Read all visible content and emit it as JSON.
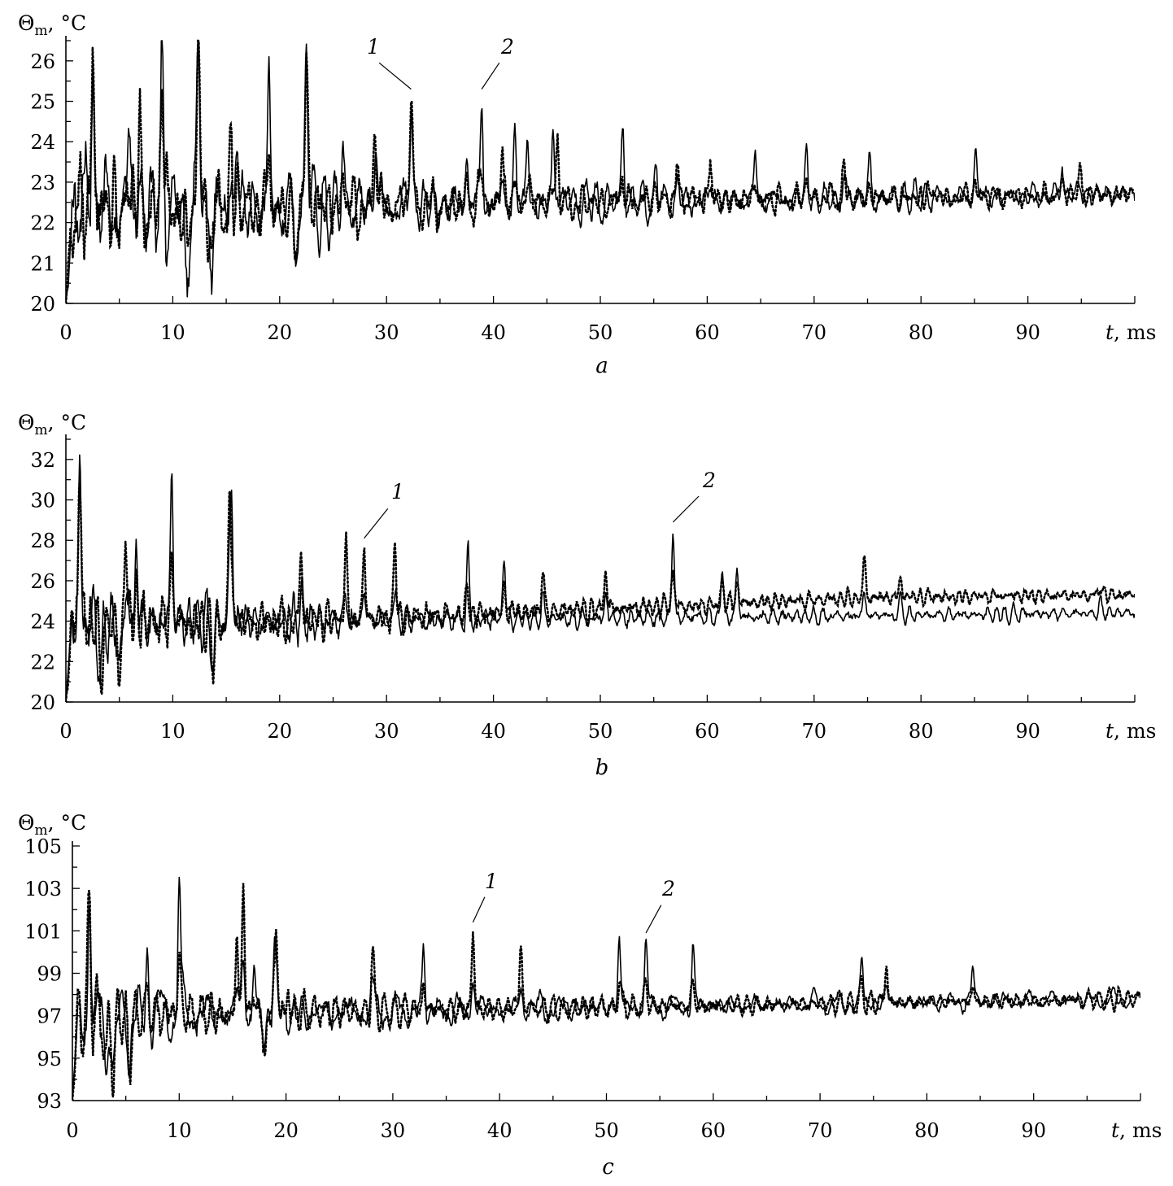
{
  "figure": {
    "panels": [
      "a",
      "b",
      "c"
    ]
  },
  "chart_data": [
    {
      "type": "line",
      "panel_label": "a",
      "ylabel": "Θm, °C",
      "xlabel": "t, ms",
      "xlim": [
        0,
        100
      ],
      "ylim": [
        20,
        26.5
      ],
      "x_ticks": [
        0,
        10,
        20,
        30,
        40,
        50,
        60,
        70,
        80,
        90
      ],
      "y_ticks": [
        20,
        21,
        22,
        23,
        24,
        25,
        26
      ],
      "series": [
        {
          "name": "1",
          "style": "dotted",
          "color": "#000000"
        },
        {
          "name": "2",
          "style": "solid",
          "color": "#000000"
        }
      ],
      "annotations": [
        {
          "label": "1",
          "at_x": 32.3,
          "at_y": 25.3
        },
        {
          "label": "2",
          "at_x": 38.9,
          "at_y": 25.3
        }
      ],
      "signal": {
        "baseline_start": 22.3,
        "baseline_end": 22.7,
        "envelope_start": 3.4,
        "envelope_end": 0.6,
        "peaks_solid": [
          [
            2.5,
            25.8
          ],
          [
            5.9,
            24.6
          ],
          [
            9.0,
            25.2
          ],
          [
            12.4,
            26.1
          ],
          [
            16.0,
            24.5
          ],
          [
            19.0,
            25.7
          ],
          [
            22.5,
            26.0
          ],
          [
            25.9,
            24.0
          ],
          [
            29.0,
            24.1
          ],
          [
            32.3,
            24.2
          ],
          [
            37.5,
            23.9
          ],
          [
            38.9,
            25.3
          ],
          [
            42.0,
            24.2
          ],
          [
            43.2,
            24.4
          ],
          [
            45.6,
            24.2
          ],
          [
            52.1,
            24.5
          ],
          [
            55.2,
            23.6
          ],
          [
            64.5,
            23.8
          ],
          [
            69.3,
            24.0
          ],
          [
            75.2,
            23.5
          ],
          [
            85.1,
            23.9
          ],
          [
            93.2,
            23.6
          ]
        ],
        "peaks_dotted": [
          [
            2.5,
            25.8
          ],
          [
            6.9,
            24.5
          ],
          [
            9.0,
            25.2
          ],
          [
            12.4,
            26.3
          ],
          [
            15.4,
            24.0
          ],
          [
            22.5,
            26.0
          ],
          [
            28.9,
            24.2
          ],
          [
            32.3,
            25.3
          ],
          [
            40.8,
            24.2
          ],
          [
            46.0,
            24.0
          ],
          [
            57.2,
            23.8
          ],
          [
            60.3,
            23.8
          ],
          [
            72.8,
            23.6
          ],
          [
            80.6,
            23.0
          ],
          [
            94.9,
            23.5
          ]
        ],
        "minima": [
          [
            11.3,
            20.8
          ],
          [
            13.7,
            21.0
          ],
          [
            21.5,
            21.1
          ]
        ],
        "seed_solid": 11,
        "seed_dotted": 29
      }
    },
    {
      "type": "line",
      "panel_label": "b",
      "ylabel": "Θm, °C",
      "xlabel": "t, ms",
      "xlim": [
        0,
        100
      ],
      "ylim": [
        20,
        33
      ],
      "x_ticks": [
        0,
        10,
        20,
        30,
        40,
        50,
        60,
        70,
        80,
        90
      ],
      "y_ticks": [
        20,
        22,
        24,
        26,
        28,
        30,
        32
      ],
      "series": [
        {
          "name": "1",
          "style": "dotted",
          "color": "#000000"
        },
        {
          "name": "2",
          "style": "solid",
          "color": "#000000"
        }
      ],
      "annotations": [
        {
          "label": "1",
          "at_x": 27.9,
          "at_y": 28.1
        },
        {
          "label": "2",
          "at_x": 56.8,
          "at_y": 28.9
        }
      ],
      "signal": {
        "baseline_start": 23.9,
        "baseline_end": 24.4,
        "envelope_start": 4.0,
        "envelope_end": 0.8,
        "peaks_solid": [
          [
            1.3,
            30.0
          ],
          [
            6.6,
            28.5
          ],
          [
            9.9,
            32.4
          ],
          [
            15.5,
            30.1
          ],
          [
            37.6,
            27.7
          ],
          [
            41.0,
            27.6
          ],
          [
            56.8,
            28.9
          ],
          [
            61.4,
            27.0
          ],
          [
            62.8,
            27.0
          ]
        ],
        "peaks_dotted": [
          [
            1.3,
            30.0
          ],
          [
            5.6,
            29.1
          ],
          [
            15.3,
            29.7
          ],
          [
            22.0,
            27.9
          ],
          [
            26.2,
            28.2
          ],
          [
            27.9,
            28.1
          ],
          [
            30.8,
            28.1
          ],
          [
            44.6,
            26.9
          ],
          [
            50.5,
            26.9
          ],
          [
            74.7,
            27.4
          ],
          [
            78.1,
            26.3
          ],
          [
            96.8,
            25.8
          ]
        ],
        "minima": [
          [
            3.3,
            20.7
          ],
          [
            5.0,
            21.1
          ],
          [
            13.8,
            21.9
          ]
        ],
        "offset_dotted_end": 0.9,
        "seed_solid": 47,
        "seed_dotted": 83
      }
    },
    {
      "type": "line",
      "panel_label": "c",
      "ylabel": "Θm, °C",
      "xlabel": "t, ms",
      "xlim": [
        0,
        100
      ],
      "ylim": [
        93,
        105
      ],
      "x_ticks": [
        0,
        10,
        20,
        30,
        40,
        50,
        60,
        70,
        80,
        90
      ],
      "y_ticks": [
        93,
        95,
        97,
        99,
        101,
        103,
        105
      ],
      "series": [
        {
          "name": "1",
          "style": "dotted",
          "color": "#000000"
        },
        {
          "name": "2",
          "style": "solid",
          "color": "#000000"
        }
      ],
      "annotations": [
        {
          "label": "1",
          "at_x": 37.5,
          "at_y": 101.4
        },
        {
          "label": "2",
          "at_x": 53.7,
          "at_y": 100.9
        }
      ],
      "signal": {
        "baseline_start": 97.0,
        "baseline_end": 97.8,
        "envelope_start": 3.0,
        "envelope_end": 0.9,
        "peaks_solid": [
          [
            1.6,
            101.4
          ],
          [
            7.0,
            100.3
          ],
          [
            10.0,
            104.3
          ],
          [
            17.0,
            100.1
          ],
          [
            18.9,
            100.3
          ],
          [
            32.9,
            100.5
          ],
          [
            51.2,
            101.0
          ],
          [
            53.7,
            100.9
          ],
          [
            58.1,
            100.4
          ],
          [
            73.9,
            99.8
          ],
          [
            84.3,
            99.4
          ]
        ],
        "peaks_dotted": [
          [
            1.6,
            101.3
          ],
          [
            15.4,
            100.8
          ],
          [
            16.0,
            103.7
          ],
          [
            19.1,
            101.0
          ],
          [
            20.2,
            100.8
          ],
          [
            28.1,
            100.4
          ],
          [
            37.5,
            101.4
          ],
          [
            42.0,
            100.5
          ],
          [
            76.2,
            99.7
          ]
        ],
        "minima": [
          [
            3.1,
            94.6
          ],
          [
            3.8,
            94.0
          ],
          [
            5.3,
            94.4
          ],
          [
            18.0,
            94.9
          ],
          [
            20.2,
            95.0
          ]
        ],
        "seed_solid": 101,
        "seed_dotted": 61
      }
    }
  ]
}
